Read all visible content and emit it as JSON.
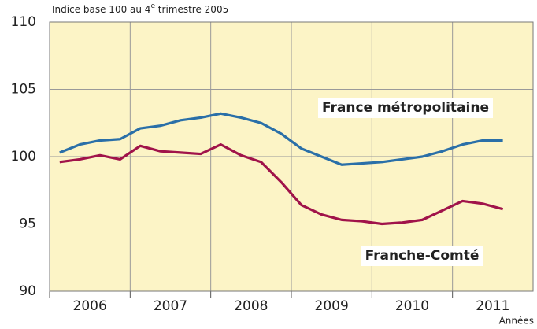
{
  "chart_data": {
    "type": "line",
    "subtitle_parts": [
      "Indice base 100 au 4",
      "e",
      " trimestre 2005"
    ],
    "x_label": "Années",
    "categories": [
      null,
      null,
      null,
      null,
      null,
      null,
      null,
      null,
      null,
      null,
      null,
      null,
      null,
      null,
      null,
      null,
      null,
      null,
      null,
      null,
      null,
      null,
      null
    ],
    "x_groups": [
      "2006",
      "2007",
      "2008",
      "2009",
      "2010",
      "2011"
    ],
    "series": [
      {
        "name": "France métropolitaine",
        "color": "#2a6fa8",
        "values": [
          100.3,
          100.9,
          101.2,
          101.3,
          102.1,
          102.3,
          102.7,
          102.9,
          103.2,
          102.9,
          102.5,
          101.7,
          100.6,
          100.0,
          99.4,
          99.5,
          99.6,
          99.8,
          100.0,
          100.4,
          100.9,
          101.2,
          101.2
        ]
      },
      {
        "name": "Franche-Comté",
        "color": "#a0134a",
        "values": [
          99.6,
          99.8,
          100.1,
          99.8,
          100.8,
          100.4,
          100.3,
          100.2,
          100.9,
          100.1,
          99.6,
          98.1,
          96.4,
          95.7,
          95.3,
          95.2,
          95.0,
          95.1,
          95.3,
          96.0,
          96.7,
          96.5,
          96.1
        ]
      }
    ],
    "ylim": [
      90,
      110
    ],
    "yticks": [
      90,
      95,
      100,
      105,
      110
    ],
    "grid": true,
    "background": "#fcf4c6"
  }
}
